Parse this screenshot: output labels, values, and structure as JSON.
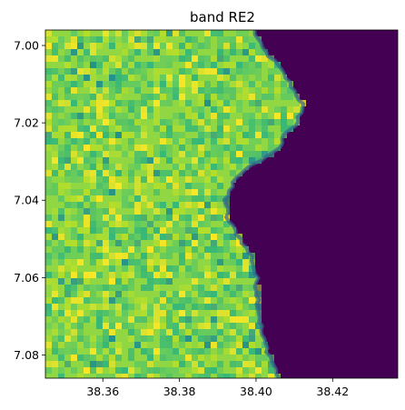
{
  "chart_data": {
    "type": "heatmap",
    "title": "band RE2",
    "xlabel": "",
    "ylabel": "",
    "x_ticks": [
      "38.36",
      "38.38",
      "38.40",
      "38.42"
    ],
    "y_ticks": [
      "7.00",
      "7.02",
      "7.04",
      "7.06",
      "7.08"
    ],
    "x_tick_values": [
      38.36,
      38.38,
      38.4,
      38.42
    ],
    "y_tick_values": [
      7.0,
      7.02,
      7.04,
      7.06,
      7.08
    ],
    "xlim": [
      38.345,
      38.437
    ],
    "ylim": [
      7.086,
      6.996
    ],
    "y_inverted": true,
    "grid": false,
    "colormap": "viridis",
    "colorbar": false,
    "description_regions": {
      "land": "west portion, high reflectance (green-yellow)",
      "water": "east portion, low reflectance (dark purple)"
    },
    "shoreline_lon_by_lat": [
      [
        6.996,
        38.3995
      ],
      [
        7.0,
        38.401
      ],
      [
        7.005,
        38.4055
      ],
      [
        7.01,
        38.409
      ],
      [
        7.015,
        38.412
      ],
      [
        7.02,
        38.411
      ],
      [
        7.023,
        38.4075
      ],
      [
        7.027,
        38.4055
      ],
      [
        7.031,
        38.399
      ],
      [
        7.035,
        38.394
      ],
      [
        7.04,
        38.392
      ],
      [
        7.045,
        38.3925
      ],
      [
        7.05,
        38.396
      ],
      [
        7.055,
        38.399
      ],
      [
        7.06,
        38.4
      ],
      [
        7.065,
        38.4005
      ],
      [
        7.07,
        38.401
      ],
      [
        7.075,
        38.4015
      ],
      [
        7.08,
        38.4035
      ],
      [
        7.086,
        38.406
      ]
    ],
    "colors": {
      "water": "#440154",
      "land_low": "#35b779",
      "land_mid": "#90d743",
      "land_high": "#fde725"
    }
  }
}
